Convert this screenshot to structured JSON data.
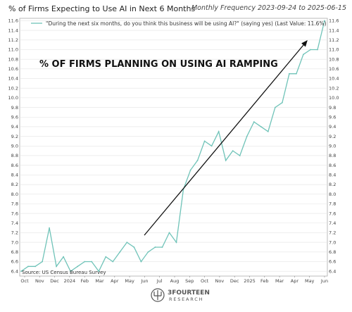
{
  "header": {
    "title": "% of Firms Expecting to Use AI in Next 6 Months",
    "subtitle": "Monthly Frequency 2023-09-24 to 2025-06-15"
  },
  "colors": {
    "series": "#6fc3b8",
    "arrow": "#111111",
    "grid": "#dddddd",
    "frame": "#aaaaaa"
  },
  "logo": {
    "line1": "3FOURTEEN",
    "line2": "RESEARCH",
    "icon": "trident-logo-icon"
  },
  "chart_data": {
    "type": "line",
    "title": "% of Firms Expecting to Use AI in Next 6 Months",
    "legend": "\"During the next six months, do you think this business will be using AI?\" (saying yes) (Last Value: 11.6%)",
    "annotation": "% OF FIRMS PLANNING ON USING AI RAMPING",
    "source": "Source: US Census Bureau Survey",
    "ylim": [
      6.3,
      11.65
    ],
    "grid": true,
    "x_tick_labels": [
      "Oct",
      "Nov",
      "Dec",
      "2024",
      "Feb",
      "Mar",
      "Apr",
      "May",
      "Jun",
      "Jul",
      "Aug",
      "Sep",
      "Oct",
      "Nov",
      "Dec",
      "2025",
      "Feb",
      "Mar",
      "Apr",
      "May",
      "Jun"
    ],
    "y_tick_labels": [
      "6.4",
      "6.6",
      "6.8",
      "7.0",
      "7.2",
      "7.4",
      "7.6",
      "7.8",
      "8.0",
      "8.2",
      "8.4",
      "8.6",
      "8.8",
      "9.0",
      "9.2",
      "9.4",
      "9.6",
      "9.8",
      "10.0",
      "10.2",
      "10.4",
      "10.6",
      "10.8",
      "11.0",
      "11.2",
      "11.4",
      "11.6"
    ],
    "series": [
      {
        "values": [
          6.4,
          6.5,
          6.5,
          6.6,
          7.3,
          6.5,
          6.7,
          6.4,
          6.5,
          6.6,
          6.6,
          6.4,
          6.7,
          6.6,
          6.8,
          7.0,
          6.9,
          6.6,
          6.8,
          6.9,
          6.9,
          7.2,
          7.0,
          8.1,
          8.5,
          8.7,
          9.1,
          9.0,
          9.3,
          8.7,
          8.9,
          8.8,
          9.2,
          9.5,
          9.4,
          9.3,
          9.8,
          9.9,
          10.5,
          10.5,
          10.9,
          11.0,
          11.0,
          11.6
        ]
      }
    ]
  }
}
